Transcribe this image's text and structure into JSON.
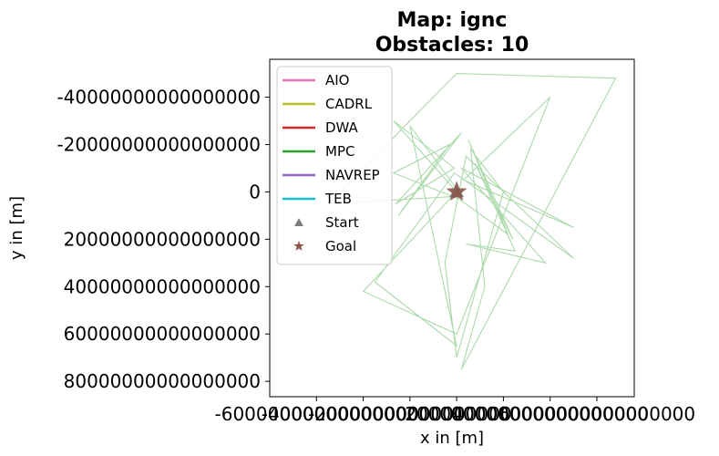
{
  "chart_data": {
    "type": "line",
    "title_line1": "Map: ignc",
    "title_line2": "Obstacles: 10",
    "xlabel": "x in [m]",
    "ylabel": "y in [m]",
    "xlim": [
      -8e+16,
      7.6e+16
    ],
    "ylim": [
      8.65e+16,
      -5.6e+16
    ],
    "y_inverted": true,
    "x_ticks": [
      -60000000000000000,
      -40000000000000000,
      -20000000000000000,
      0,
      20000000000000000,
      40000000000000000,
      60000000000000000
    ],
    "x_tick_labels": [
      "-60000000000000000",
      "-40000000000000000",
      "-20000000000000000",
      "0",
      "20000000000000000",
      "40000000000000000",
      "60000000000000000"
    ],
    "y_ticks": [
      -40000000000000000,
      -20000000000000000,
      0,
      20000000000000000,
      40000000000000000,
      60000000000000000,
      80000000000000000
    ],
    "y_tick_labels": [
      "-40000000000000000",
      "-20000000000000000",
      "0",
      "20000000000000000",
      "40000000000000000",
      "60000000000000000",
      "80000000000000000"
    ],
    "grid": false,
    "legend_placement": "upper-left",
    "series": [
      {
        "name": "AIO",
        "color": "#e377c2",
        "kind": "line"
      },
      {
        "name": "CADRL",
        "color": "#bcbd22",
        "kind": "line"
      },
      {
        "name": "DWA",
        "color": "#d62728",
        "kind": "line"
      },
      {
        "name": "MPC",
        "color": "#2ca02c",
        "kind": "line",
        "x": [
          0,
          -27000000000000000,
          -1000000000000000,
          -26000000000000000,
          2000000000000000,
          -25000000000000000,
          -3000000000000000,
          -27000000000000000,
          1000000000000000,
          22000000000000000,
          5000000000000000,
          24000000000000000,
          8000000000000000,
          25000000000000000,
          4000000000000000,
          38000000000000000,
          2000000000000000,
          50000000000000000,
          3000000000000000,
          40000000000000000,
          0,
          -40000000000000000,
          -2000000000000000,
          -55000000000000000,
          0,
          68000000000000000,
          2000000000000000,
          12000000000000000,
          6000000000000000,
          20000000000000000,
          0,
          -5000000000000000,
          4000000000000000,
          50000000000000000,
          -1000000000000000,
          -35000000000000000,
          0,
          -20000000000000000,
          1000000000000000
        ],
        "y": [
          0,
          -30000000000000000,
          -10000000000000000,
          5000000000000000,
          -25000000000000000,
          10000000000000000,
          -20000000000000000,
          -8000000000000000,
          3000000000000000,
          18000000000000000,
          -22000000000000000,
          20000000000000000,
          -12000000000000000,
          25000000000000000,
          22000000000000000,
          30000000000000000,
          -10000000000000000,
          15000000000000000,
          -5000000000000000,
          -40000000000000000,
          60000000000000000,
          42000000000000000,
          2000000000000000,
          5000000000000000,
          -50000000000000000,
          -48000000000000000,
          75000000000000000,
          40000000000000000,
          -18000000000000000,
          0,
          70000000000000000,
          30000000000000000,
          -15000000000000000,
          28000000000000000,
          -8000000000000000,
          38000000000000000,
          65000000000000000,
          -28000000000000000,
          0
        ]
      },
      {
        "name": "NAVREP",
        "color": "#9467bd",
        "kind": "line"
      },
      {
        "name": "TEB",
        "color": "#17becf",
        "kind": "line"
      },
      {
        "name": "Start",
        "color": "#7f7f7f",
        "kind": "marker-triangle",
        "x": [
          0
        ],
        "y": [
          0
        ]
      },
      {
        "name": "Goal",
        "color": "#8c564b",
        "kind": "marker-star",
        "x": [
          0
        ],
        "y": [
          0
        ]
      }
    ]
  }
}
